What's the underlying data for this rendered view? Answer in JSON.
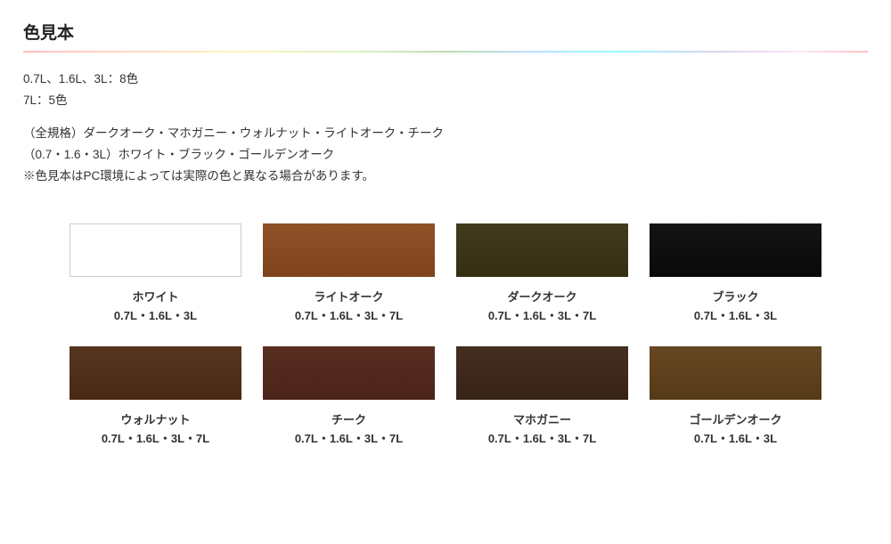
{
  "section_title": "色見本",
  "description": {
    "line1": "0.7L、1.6L、3L：8色",
    "line2": "7L：5色",
    "line3": "（全規格）ダークオーク・マホガニー・ウォルナット・ライトオーク・チーク",
    "line4": "（0.7・1.6・3L）ホワイト・ブラック・ゴールデンオーク",
    "line5": "※色見本はPC環境によっては実際の色と異なる場合があります。"
  },
  "swatches": [
    {
      "name": "ホワイト",
      "sizes": "0.7L・1.6L・3L",
      "color": "#ffffff",
      "is_white": true
    },
    {
      "name": "ライトオーク",
      "sizes": "0.7L・1.6L・3L・7L",
      "color": "#8a4a1f",
      "is_white": false
    },
    {
      "name": "ダークオーク",
      "sizes": "0.7L・1.6L・3L・7L",
      "color": "#3a3414",
      "is_white": false
    },
    {
      "name": "ブラック",
      "sizes": "0.7L・1.6L・3L",
      "color": "#0a0a0a",
      "is_white": false
    },
    {
      "name": "ウォルナット",
      "sizes": "0.7L・1.6L・3L・7L",
      "color": "#4f2d16",
      "is_white": false
    },
    {
      "name": "チーク",
      "sizes": "0.7L・1.6L・3L・7L",
      "color": "#52261a",
      "is_white": false
    },
    {
      "name": "マホガニー",
      "sizes": "0.7L・1.6L・3L・7L",
      "color": "#3c2618",
      "is_white": false
    },
    {
      "name": "ゴールデンオーク",
      "sizes": "0.7L・1.6L・3L",
      "color": "#5e3f19",
      "is_white": false
    }
  ]
}
